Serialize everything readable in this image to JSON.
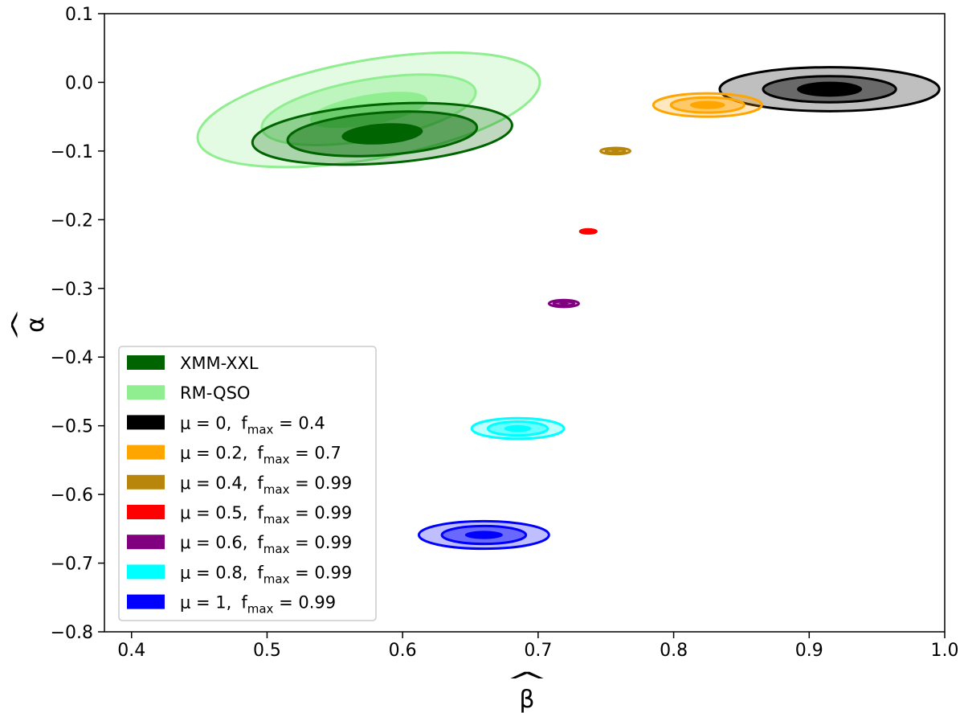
{
  "chart_data": {
    "type": "contour",
    "xlabel": "β",
    "ylabel": "α",
    "label_hat": "^",
    "xlim": [
      0.38,
      1.0
    ],
    "ylim": [
      -0.8,
      0.1
    ],
    "xticks": [
      {
        "value": 0.4,
        "label": "0.4"
      },
      {
        "value": 0.5,
        "label": "0.5"
      },
      {
        "value": 0.6,
        "label": "0.6"
      },
      {
        "value": 0.7,
        "label": "0.7"
      },
      {
        "value": 0.8,
        "label": "0.8"
      },
      {
        "value": 0.9,
        "label": "0.9"
      },
      {
        "value": 1.0,
        "label": "1.0"
      }
    ],
    "yticks": [
      {
        "value": 0.1,
        "label": "0.1"
      },
      {
        "value": 0.0,
        "label": "0.0"
      },
      {
        "value": -0.1,
        "label": "−0.1"
      },
      {
        "value": -0.2,
        "label": "−0.2"
      },
      {
        "value": -0.3,
        "label": "−0.3"
      },
      {
        "value": -0.4,
        "label": "−0.4"
      },
      {
        "value": -0.5,
        "label": "−0.5"
      },
      {
        "value": -0.6,
        "label": "−0.6"
      },
      {
        "value": -0.7,
        "label": "−0.7"
      },
      {
        "value": -0.8,
        "label": "−0.8"
      }
    ],
    "legend_location": "lower-left",
    "series": [
      {
        "id": "rm-qso",
        "color": "#90ee90",
        "legend": {
          "text": "RM-QSO"
        },
        "center": [
          0.575,
          -0.04
        ],
        "rot": -10,
        "levels": [
          [
            0.128,
            0.072
          ],
          [
            0.08,
            0.044
          ],
          [
            0.044,
            0.022
          ]
        ]
      },
      {
        "id": "xmm-xxl",
        "color": "#006400",
        "legend": {
          "text": "XMM-XXL"
        },
        "center": [
          0.585,
          -0.075
        ],
        "rot": -4,
        "levels": [
          [
            0.096,
            0.043
          ],
          [
            0.07,
            0.031
          ],
          [
            0.03,
            0.015
          ]
        ]
      },
      {
        "id": "mu0",
        "color": "#000000",
        "legend": {
          "mu": "μ = 0,",
          "f": "f",
          "sub": "max",
          "fval": " = 0.4"
        },
        "center": [
          0.915,
          -0.01
        ],
        "rot": 0,
        "levels": [
          [
            0.081,
            0.032
          ],
          [
            0.049,
            0.019
          ],
          [
            0.024,
            0.011
          ]
        ]
      },
      {
        "id": "mu02",
        "color": "#ffa500",
        "legend": {
          "mu": "μ = 0.2,",
          "f": "f",
          "sub": "max",
          "fval": " = 0.7"
        },
        "center": [
          0.825,
          -0.033
        ],
        "rot": 0,
        "levels": [
          [
            0.04,
            0.017
          ],
          [
            0.027,
            0.011
          ],
          [
            0.013,
            0.006
          ]
        ]
      },
      {
        "id": "mu04",
        "color": "#b8860b",
        "legend": {
          "mu": "μ = 0.4,",
          "f": "f",
          "sub": "max",
          "fval": " = 0.99"
        },
        "center": [
          0.757,
          -0.1
        ],
        "rot": 0,
        "levels": [
          [
            0.011,
            0.0045
          ],
          [
            0.007,
            0.003
          ],
          [
            0.003,
            0.0015
          ]
        ]
      },
      {
        "id": "mu05",
        "color": "#ff0000",
        "legend": {
          "mu": "μ = 0.5,",
          "f": "f",
          "sub": "max",
          "fval": " = 0.99"
        },
        "center": [
          0.737,
          -0.217
        ],
        "rot": 0,
        "levels": [
          [
            0.006,
            0.003
          ],
          [
            0.004,
            0.002
          ],
          [
            0.002,
            0.0011
          ]
        ]
      },
      {
        "id": "mu06",
        "color": "#800080",
        "legend": {
          "mu": "μ = 0.6,",
          "f": "f",
          "sub": "max",
          "fval": " = 0.99"
        },
        "center": [
          0.719,
          -0.322
        ],
        "rot": 0,
        "levels": [
          [
            0.011,
            0.005
          ],
          [
            0.0075,
            0.0033
          ],
          [
            0.0035,
            0.0018
          ]
        ]
      },
      {
        "id": "mu08",
        "color": "#00ffff",
        "legend": {
          "mu": "μ = 0.8,",
          "f": "f",
          "sub": "max",
          "fval": " = 0.99"
        },
        "center": [
          0.685,
          -0.504
        ],
        "rot": 0,
        "levels": [
          [
            0.034,
            0.015
          ],
          [
            0.022,
            0.01
          ],
          [
            0.01,
            0.005
          ]
        ]
      },
      {
        "id": "mu1",
        "color": "#0000ff",
        "legend": {
          "mu": "μ = 1,",
          "f": "f",
          "sub": "max",
          "fval": " = 0.99"
        },
        "center": [
          0.66,
          -0.659
        ],
        "rot": 0,
        "levels": [
          [
            0.048,
            0.02
          ],
          [
            0.031,
            0.013
          ],
          [
            0.014,
            0.006
          ]
        ]
      }
    ],
    "legend_order": [
      "xmm-xxl",
      "rm-qso",
      "mu0",
      "mu02",
      "mu04",
      "mu05",
      "mu06",
      "mu08",
      "mu1"
    ]
  }
}
